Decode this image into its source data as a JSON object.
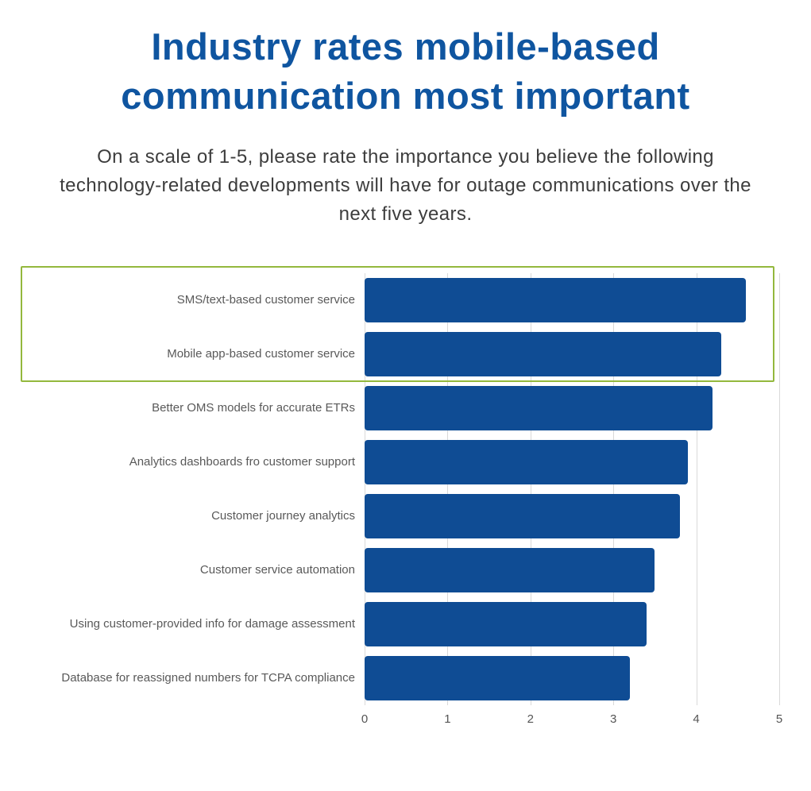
{
  "page": {
    "title_line1": "Industry rates mobile-based",
    "title_line2": "communication most important",
    "subtitle": "On a scale of 1-5, please rate the importance you believe the following technology-related developments will have for outage communications over the next five years.",
    "title_color": "#0f55a0"
  },
  "chart_data": {
    "type": "bar",
    "orientation": "horizontal",
    "title": "Industry rates mobile-based communication most important",
    "subtitle": "On a scale of 1-5, please rate the importance you believe the following technology-related developments will have for outage communications over the next five years.",
    "categories": [
      "SMS/text-based customer service",
      "Mobile app-based customer service",
      "Better OMS models for accurate ETRs",
      "Analytics dashboards fro customer support",
      "Customer journey analytics",
      "Customer service automation",
      "Using customer-provided info for damage assessment",
      "Database for reassigned numbers for TCPA compliance"
    ],
    "values": [
      4.6,
      4.3,
      4.2,
      3.9,
      3.8,
      3.5,
      3.4,
      3.2
    ],
    "xlabel": "",
    "ylabel": "",
    "xlim": [
      0,
      5
    ],
    "x_ticks": [
      "0",
      "1",
      "2",
      "3",
      "4",
      "5"
    ],
    "grid": true,
    "legend_position": "none",
    "bar_color": "#0f4c94",
    "highlight_box": {
      "rows_covered": [
        "SMS/text-based customer service",
        "Mobile app-based customer service"
      ],
      "border_color": "#93b83d"
    }
  }
}
